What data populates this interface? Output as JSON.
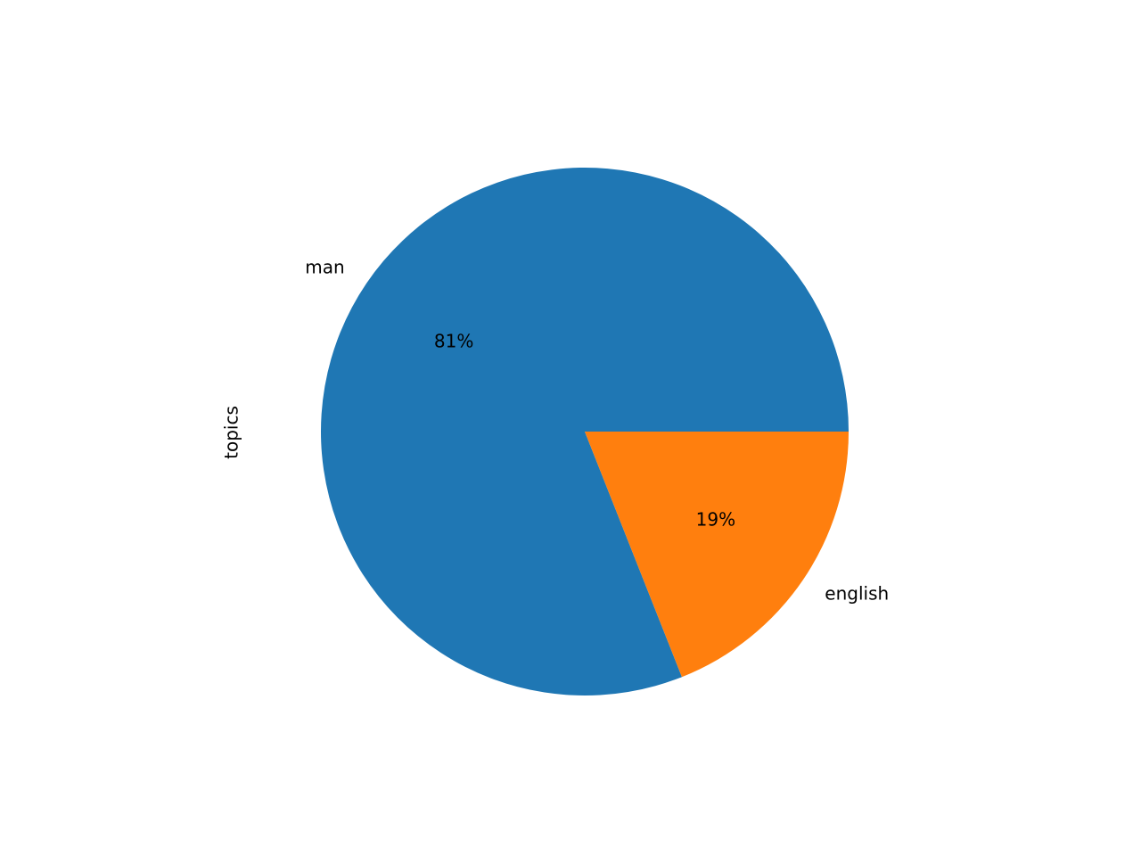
{
  "chart_data": {
    "type": "pie",
    "ylabel": "topics",
    "categories": [
      "man",
      "english"
    ],
    "values": [
      81,
      19
    ],
    "pct_labels": [
      "81%",
      "19%"
    ],
    "colors": [
      "#1f77b4",
      "#ff7f0e"
    ],
    "start_angle_deg": 0,
    "direction": "counterclockwise"
  }
}
